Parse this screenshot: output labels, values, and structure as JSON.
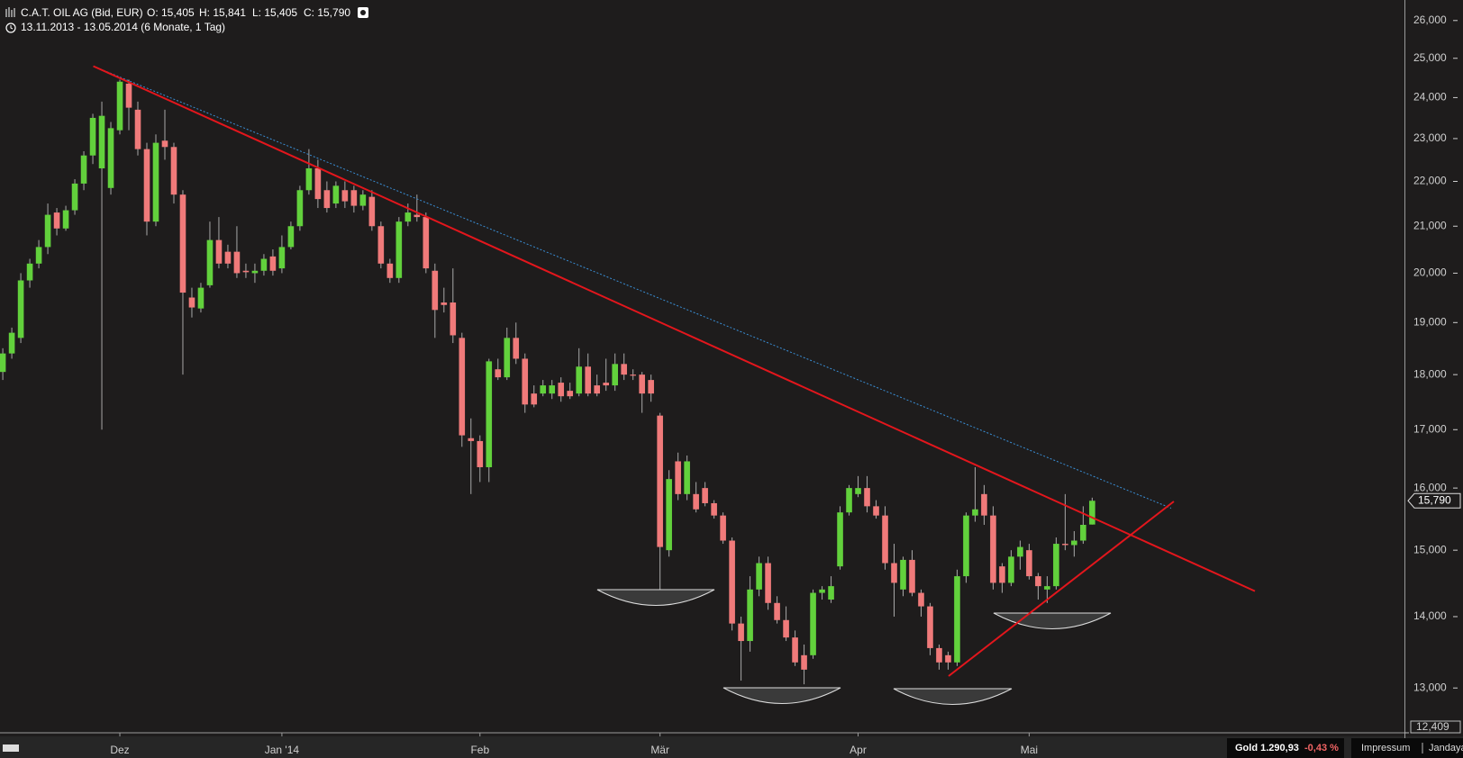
{
  "chart_data": {
    "type": "candlestick",
    "title": "C.A.T. OIL AG (Bid, EUR)",
    "quote": [
      "O: 15,405",
      "H: 15,841",
      "L: 15,405",
      "C: 15,790"
    ],
    "subtitle": "13.11.2013 - 13.05.2014 (6 Monate, 1 Tag)",
    "log_scale": true,
    "grid": false,
    "up_color": "#62d13c",
    "down_color": "#f07a7a",
    "ylim": [
      12409,
      26560
    ],
    "yticks": [
      {
        "value": 12409,
        "label": "12,409"
      },
      {
        "value": 13000,
        "label": "13,000"
      },
      {
        "value": 14000,
        "label": "14,000"
      },
      {
        "value": 15000,
        "label": "15,000"
      },
      {
        "value": 16000,
        "label": "16,000"
      },
      {
        "value": 17000,
        "label": "17,000"
      },
      {
        "value": 18000,
        "label": "18,000"
      },
      {
        "value": 19000,
        "label": "19,000"
      },
      {
        "value": 20000,
        "label": "20,000"
      },
      {
        "value": 21000,
        "label": "21,000"
      },
      {
        "value": 22000,
        "label": "22,000"
      },
      {
        "value": 23000,
        "label": "23,000"
      },
      {
        "value": 24000,
        "label": "24,000"
      },
      {
        "value": 25000,
        "label": "25,000"
      },
      {
        "value": 26000,
        "label": "26,000"
      }
    ],
    "last_price": {
      "value": 15790,
      "label": "15,790"
    },
    "categories": [
      null,
      null,
      null,
      null,
      null,
      null,
      null,
      null,
      null,
      null,
      null,
      null,
      null,
      "Dez",
      null,
      null,
      null,
      null,
      null,
      null,
      null,
      null,
      null,
      null,
      null,
      null,
      null,
      null,
      null,
      null,
      null,
      "Jan '14",
      null,
      null,
      null,
      null,
      null,
      null,
      null,
      null,
      null,
      null,
      null,
      null,
      null,
      null,
      null,
      null,
      null,
      null,
      null,
      null,
      null,
      "Feb",
      null,
      null,
      null,
      null,
      null,
      null,
      null,
      null,
      null,
      null,
      null,
      null,
      null,
      null,
      null,
      null,
      null,
      null,
      null,
      "Mär",
      null,
      null,
      null,
      null,
      null,
      null,
      null,
      null,
      null,
      null,
      null,
      null,
      null,
      null,
      null,
      null,
      null,
      null,
      null,
      null,
      null,
      "Apr",
      null,
      null,
      null,
      null,
      null,
      null,
      null,
      null,
      null,
      null,
      null,
      null,
      null,
      null,
      null,
      null,
      null,
      null,
      "Mai",
      null,
      null,
      null,
      null,
      null,
      null,
      null
    ],
    "open": [
      18050,
      18400,
      18700,
      19850,
      20200,
      20550,
      21300,
      20950,
      21350,
      21950,
      22600,
      22300,
      21850,
      23200,
      24350,
      23700,
      22750,
      21100,
      22950,
      22800,
      21700,
      19500,
      19280,
      19750,
      20700,
      20450,
      20450,
      20050,
      20000,
      20050,
      20350,
      20100,
      20550,
      21000,
      21800,
      22300,
      21800,
      21500,
      21800,
      21800,
      21450,
      21650,
      21000,
      20200,
      19900,
      21100,
      21250,
      21200,
      20050,
      19400,
      19400,
      18700,
      16850,
      16800,
      16350,
      18100,
      17950,
      18700,
      18300,
      17650,
      17650,
      17650,
      17850,
      17700,
      17650,
      18150,
      17800,
      17850,
      17800,
      18200,
      18000,
      18000,
      17900,
      17250,
      15000,
      16450,
      15900,
      15900,
      16000,
      15750,
      15550,
      15150,
      13900,
      13650,
      14400,
      14800,
      14200,
      13950,
      13700,
      13450,
      13450,
      14350,
      14250,
      14750,
      15600,
      15900,
      16000,
      15700,
      15550,
      14800,
      14400,
      14850,
      14350,
      14150,
      13550,
      13450,
      13350,
      14600,
      15550,
      15900,
      15550,
      14750,
      14500,
      14900,
      15000,
      14600,
      14400,
      14450,
      15100,
      15080,
      15150,
      15405
    ],
    "high": [
      18500,
      18900,
      20000,
      20300,
      20700,
      21500,
      21400,
      21450,
      22050,
      22700,
      23600,
      23900,
      23400,
      24450,
      24450,
      23900,
      22900,
      23100,
      23700,
      22900,
      21800,
      19700,
      19800,
      21100,
      21200,
      20600,
      21000,
      20200,
      20200,
      20400,
      20500,
      20800,
      21100,
      21900,
      22750,
      22500,
      22000,
      22000,
      22000,
      21900,
      21800,
      21800,
      21100,
      20300,
      21200,
      21500,
      21700,
      21300,
      20200,
      19700,
      20100,
      18800,
      17200,
      16900,
      18300,
      18300,
      18900,
      19000,
      18400,
      17800,
      17900,
      17900,
      17950,
      17850,
      18500,
      18400,
      18000,
      18300,
      18400,
      18400,
      18100,
      18050,
      18000,
      17300,
      16300,
      16600,
      16550,
      16100,
      16100,
      15800,
      15600,
      15200,
      14000,
      14600,
      14900,
      14900,
      14300,
      14150,
      13800,
      13600,
      14400,
      14450,
      14600,
      15700,
      16050,
      16200,
      16200,
      15800,
      15700,
      15100,
      14900,
      15000,
      14400,
      14200,
      13600,
      13500,
      14700,
      15600,
      16350,
      16050,
      15700,
      14800,
      15000,
      15150,
      15100,
      14650,
      14600,
      15200,
      15900,
      15300,
      15700,
      15841
    ],
    "low": [
      17900,
      18300,
      18600,
      19700,
      20100,
      20400,
      20800,
      20900,
      21250,
      21800,
      22400,
      17000,
      21700,
      23100,
      23200,
      22600,
      20800,
      21000,
      22500,
      21500,
      18000,
      19100,
      19200,
      19700,
      20100,
      20100,
      19900,
      19900,
      19800,
      19950,
      19950,
      20000,
      20500,
      20900,
      21700,
      21400,
      21300,
      21400,
      21400,
      21300,
      21350,
      20900,
      20100,
      19800,
      19800,
      21000,
      21100,
      20000,
      18700,
      19200,
      18600,
      16700,
      15900,
      16100,
      16100,
      17900,
      17900,
      18200,
      17300,
      17400,
      17600,
      17550,
      17500,
      17550,
      17600,
      17600,
      17600,
      17700,
      17700,
      17900,
      17900,
      17300,
      17500,
      14400,
      14900,
      15800,
      15800,
      15600,
      15700,
      15500,
      15100,
      13800,
      13100,
      13500,
      14300,
      14100,
      13900,
      13650,
      13300,
      13050,
      13400,
      14250,
      14200,
      14700,
      15550,
      15850,
      15600,
      15500,
      14700,
      14000,
      14300,
      14300,
      14000,
      13450,
      13250,
      13250,
      13300,
      14500,
      15450,
      15400,
      14400,
      14350,
      14450,
      14700,
      14550,
      14250,
      14200,
      14400,
      15000,
      14900,
      15100,
      15405
    ],
    "close": [
      18400,
      18800,
      19850,
      20200,
      20550,
      21250,
      20950,
      21350,
      21950,
      22600,
      23500,
      23550,
      23250,
      24400,
      23750,
      22750,
      21100,
      22900,
      22800,
      21700,
      19600,
      19300,
      19700,
      20700,
      20200,
      20200,
      20000,
      20020,
      20050,
      20300,
      20050,
      20550,
      21000,
      21800,
      22300,
      21600,
      21400,
      21900,
      21550,
      21450,
      21700,
      21000,
      20200,
      19900,
      21100,
      21300,
      21200,
      20100,
      19250,
      19350,
      18750,
      16900,
      16800,
      16350,
      18250,
      17950,
      18700,
      18300,
      17450,
      17450,
      17800,
      17800,
      17600,
      17600,
      18150,
      17650,
      17650,
      17800,
      18200,
      18000,
      17980,
      17650,
      17650,
      15050,
      16150,
      15900,
      16450,
      15650,
      15750,
      15550,
      15150,
      13900,
      13650,
      14400,
      14800,
      14200,
      13950,
      13700,
      13350,
      13250,
      14350,
      14400,
      14450,
      15600,
      16000,
      16000,
      15700,
      15550,
      14800,
      14500,
      14850,
      14350,
      14150,
      13550,
      13350,
      13350,
      14600,
      15550,
      15650,
      15550,
      14500,
      14500,
      14900,
      15050,
      14600,
      14450,
      14450,
      15100,
      15080,
      15150,
      15400,
      15790
    ]
  },
  "footer": {
    "gold": "Gold 1.290,93",
    "gold_change": "-0,43 %",
    "links": [
      "Impressum",
      "Jandaya"
    ]
  }
}
